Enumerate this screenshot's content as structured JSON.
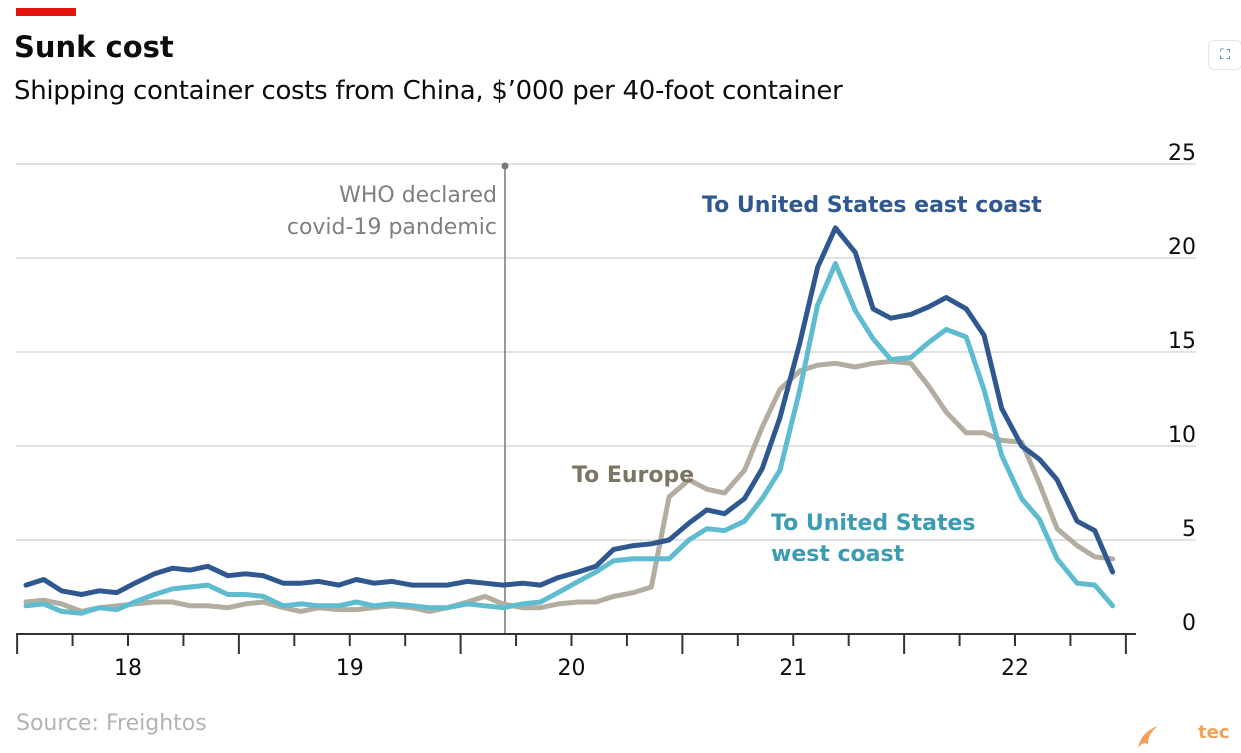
{
  "header": {
    "title": "Sunk cost",
    "subtitle": "Shipping container costs from China, $’000 per 40-foot container"
  },
  "footer": {
    "source": "Source: Freightos",
    "brand_text": "tec"
  },
  "toolbar": {
    "expand_icon": "expand-icon"
  },
  "colors": {
    "east": "#2f5891",
    "west": "#5fbcd0",
    "europe": "#b3ada0",
    "europe_label": "#7d7564",
    "grid": "#d9d9d9",
    "axis": "#333333",
    "annotation": "#7f7f7f",
    "accent_red": "#e3120b",
    "brand_orange": "#f0a15a"
  },
  "chart_data": {
    "type": "line",
    "x_tick_labels": [
      "18",
      "19",
      "20",
      "21",
      "22"
    ],
    "x_ticks": [
      2018,
      2019,
      2020,
      2021,
      2022
    ],
    "xlim": [
      2017.5,
      2022.6
    ],
    "ylim": [
      0,
      25
    ],
    "y_ticks": [
      0,
      5,
      10,
      15,
      20,
      25
    ],
    "y_axis_side": "right",
    "grid": true,
    "annotation": {
      "x": 2019.7,
      "lines": [
        "WHO declared",
        "covid-19 pandemic"
      ]
    },
    "series": [
      {
        "name": "To United States east coast",
        "color_key": "east",
        "x": [
          2017.54,
          2017.62,
          2017.7,
          2017.79,
          2017.87,
          2017.95,
          2018.03,
          2018.12,
          2018.2,
          2018.28,
          2018.36,
          2018.45,
          2018.53,
          2018.61,
          2018.7,
          2018.78,
          2018.86,
          2018.95,
          2019.03,
          2019.11,
          2019.19,
          2019.28,
          2019.36,
          2019.44,
          2019.53,
          2019.61,
          2019.69,
          2019.78,
          2019.86,
          2019.94,
          2020.03,
          2020.11,
          2020.19,
          2020.28,
          2020.36,
          2020.44,
          2020.53,
          2020.61,
          2020.69,
          2020.78,
          2020.86,
          2020.94,
          2021.03,
          2021.11,
          2021.19,
          2021.28,
          2021.36,
          2021.44,
          2021.53,
          2021.61,
          2021.69,
          2021.78,
          2021.86,
          2021.94,
          2022.03,
          2022.11,
          2022.19,
          2022.28,
          2022.36,
          2022.44
        ],
        "y": [
          2.6,
          2.9,
          2.3,
          2.1,
          2.3,
          2.2,
          2.7,
          3.2,
          3.5,
          3.4,
          3.6,
          3.1,
          3.2,
          3.1,
          2.7,
          2.7,
          2.8,
          2.6,
          2.9,
          2.7,
          2.8,
          2.6,
          2.6,
          2.6,
          2.8,
          2.7,
          2.6,
          2.7,
          2.6,
          3.0,
          3.3,
          3.6,
          4.5,
          4.7,
          4.8,
          5.0,
          5.9,
          6.6,
          6.4,
          7.2,
          8.8,
          11.5,
          15.5,
          19.5,
          21.6,
          20.3,
          17.3,
          16.8,
          17.0,
          17.4,
          17.9,
          17.3,
          15.9,
          12.0,
          10.0,
          9.3,
          8.2,
          6.0,
          5.5,
          3.3
        ]
      },
      {
        "name": "To United States west coast",
        "color_key": "west",
        "x": [
          2017.54,
          2017.62,
          2017.7,
          2017.79,
          2017.87,
          2017.95,
          2018.03,
          2018.12,
          2018.2,
          2018.28,
          2018.36,
          2018.45,
          2018.53,
          2018.61,
          2018.7,
          2018.78,
          2018.86,
          2018.95,
          2019.03,
          2019.11,
          2019.19,
          2019.28,
          2019.36,
          2019.44,
          2019.53,
          2019.61,
          2019.69,
          2019.78,
          2019.86,
          2019.94,
          2020.03,
          2020.11,
          2020.19,
          2020.28,
          2020.36,
          2020.44,
          2020.53,
          2020.61,
          2020.69,
          2020.78,
          2020.86,
          2020.94,
          2021.03,
          2021.11,
          2021.19,
          2021.28,
          2021.36,
          2021.44,
          2021.53,
          2021.61,
          2021.69,
          2021.78,
          2021.86,
          2021.94,
          2022.03,
          2022.11,
          2022.19,
          2022.28,
          2022.36,
          2022.44
        ],
        "y": [
          1.5,
          1.6,
          1.2,
          1.1,
          1.4,
          1.3,
          1.7,
          2.1,
          2.4,
          2.5,
          2.6,
          2.1,
          2.1,
          2.0,
          1.5,
          1.6,
          1.5,
          1.5,
          1.7,
          1.5,
          1.6,
          1.5,
          1.4,
          1.4,
          1.6,
          1.5,
          1.4,
          1.6,
          1.7,
          2.2,
          2.8,
          3.3,
          3.9,
          4.0,
          4.0,
          4.0,
          5.0,
          5.6,
          5.5,
          6.0,
          7.2,
          8.7,
          13.0,
          17.5,
          19.7,
          17.2,
          15.7,
          14.6,
          14.7,
          15.5,
          16.2,
          15.8,
          13.0,
          9.5,
          7.2,
          6.1,
          4.0,
          2.7,
          2.6,
          1.5
        ]
      },
      {
        "name": "To Europe",
        "color_key": "europe",
        "x": [
          2017.54,
          2017.62,
          2017.7,
          2017.79,
          2017.87,
          2017.95,
          2018.03,
          2018.12,
          2018.2,
          2018.28,
          2018.36,
          2018.45,
          2018.53,
          2018.61,
          2018.7,
          2018.78,
          2018.86,
          2018.95,
          2019.03,
          2019.11,
          2019.19,
          2019.28,
          2019.36,
          2019.44,
          2019.53,
          2019.61,
          2019.69,
          2019.78,
          2019.86,
          2019.94,
          2020.03,
          2020.11,
          2020.19,
          2020.28,
          2020.36,
          2020.44,
          2020.53,
          2020.61,
          2020.69,
          2020.78,
          2020.86,
          2020.94,
          2021.03,
          2021.11,
          2021.19,
          2021.28,
          2021.36,
          2021.44,
          2021.53,
          2021.61,
          2021.69,
          2021.78,
          2021.86,
          2021.94,
          2022.03,
          2022.11,
          2022.19,
          2022.28,
          2022.36,
          2022.44
        ],
        "y": [
          1.7,
          1.8,
          1.6,
          1.2,
          1.4,
          1.5,
          1.6,
          1.7,
          1.7,
          1.5,
          1.5,
          1.4,
          1.6,
          1.7,
          1.4,
          1.2,
          1.4,
          1.3,
          1.3,
          1.4,
          1.5,
          1.4,
          1.2,
          1.4,
          1.7,
          2.0,
          1.6,
          1.4,
          1.4,
          1.6,
          1.7,
          1.7,
          2.0,
          2.2,
          2.5,
          7.3,
          8.2,
          7.7,
          7.5,
          8.7,
          11.0,
          13.0,
          14.0,
          14.3,
          14.4,
          14.2,
          14.4,
          14.5,
          14.4,
          13.2,
          11.8,
          10.7,
          10.7,
          10.3,
          10.2,
          8.0,
          5.6,
          4.7,
          4.1,
          4.0
        ]
      }
    ]
  }
}
